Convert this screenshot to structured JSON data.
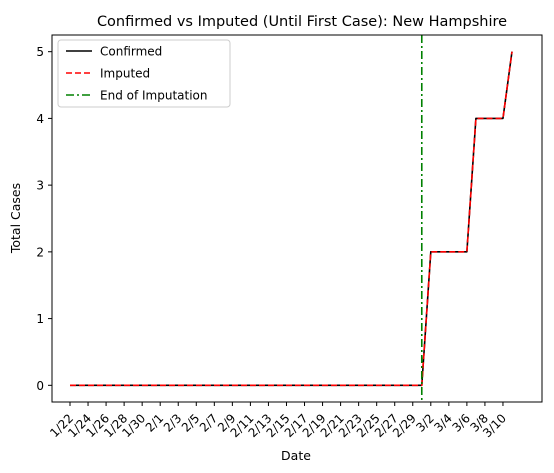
{
  "chart_data": {
    "type": "line",
    "title": "Confirmed vs Imputed (Until First Case): New Hampshire",
    "xlabel": "Date",
    "ylabel": "Total Cases",
    "x": [
      "1/22",
      "1/23",
      "1/24",
      "1/25",
      "1/26",
      "1/27",
      "1/28",
      "1/29",
      "1/30",
      "1/31",
      "2/1",
      "2/2",
      "2/3",
      "2/4",
      "2/5",
      "2/6",
      "2/7",
      "2/8",
      "2/9",
      "2/10",
      "2/11",
      "2/12",
      "2/13",
      "2/14",
      "2/15",
      "2/16",
      "2/17",
      "2/18",
      "2/19",
      "2/20",
      "2/21",
      "2/22",
      "2/23",
      "2/24",
      "2/25",
      "2/26",
      "2/27",
      "2/28",
      "2/29",
      "3/1",
      "3/2",
      "3/3",
      "3/4",
      "3/5",
      "3/6",
      "3/7",
      "3/8",
      "3/9",
      "3/10",
      "3/11"
    ],
    "x_tick_labels": [
      "1/22",
      "1/24",
      "1/26",
      "1/28",
      "1/30",
      "2/1",
      "2/3",
      "2/5",
      "2/7",
      "2/9",
      "2/11",
      "2/13",
      "2/15",
      "2/17",
      "2/19",
      "2/21",
      "2/23",
      "2/25",
      "2/27",
      "2/29",
      "3/2",
      "3/4",
      "3/6",
      "3/8",
      "3/10"
    ],
    "y_ticks": [
      0,
      1,
      2,
      3,
      4,
      5
    ],
    "ylim": [
      -0.25,
      5.25
    ],
    "series": [
      {
        "name": "Confirmed",
        "color": "#000000",
        "style": "solid",
        "values": [
          0,
          0,
          0,
          0,
          0,
          0,
          0,
          0,
          0,
          0,
          0,
          0,
          0,
          0,
          0,
          0,
          0,
          0,
          0,
          0,
          0,
          0,
          0,
          0,
          0,
          0,
          0,
          0,
          0,
          0,
          0,
          0,
          0,
          0,
          0,
          0,
          0,
          0,
          0,
          0,
          2,
          2,
          2,
          2,
          2,
          4,
          4,
          4,
          4,
          5
        ]
      },
      {
        "name": "Imputed",
        "color": "#ff0000",
        "style": "dashed",
        "values": [
          0,
          0,
          0,
          0,
          0,
          0,
          0,
          0,
          0,
          0,
          0,
          0,
          0,
          0,
          0,
          0,
          0,
          0,
          0,
          0,
          0,
          0,
          0,
          0,
          0,
          0,
          0,
          0,
          0,
          0,
          0,
          0,
          0,
          0,
          0,
          0,
          0,
          0,
          0,
          0,
          2,
          2,
          2,
          2,
          2,
          4,
          4,
          4,
          4,
          5
        ]
      }
    ],
    "vline": {
      "name": "End of Imputation",
      "x": "3/1",
      "color": "#008000",
      "style": "dashdot"
    },
    "legend_position": "top-left",
    "grid": false
  }
}
